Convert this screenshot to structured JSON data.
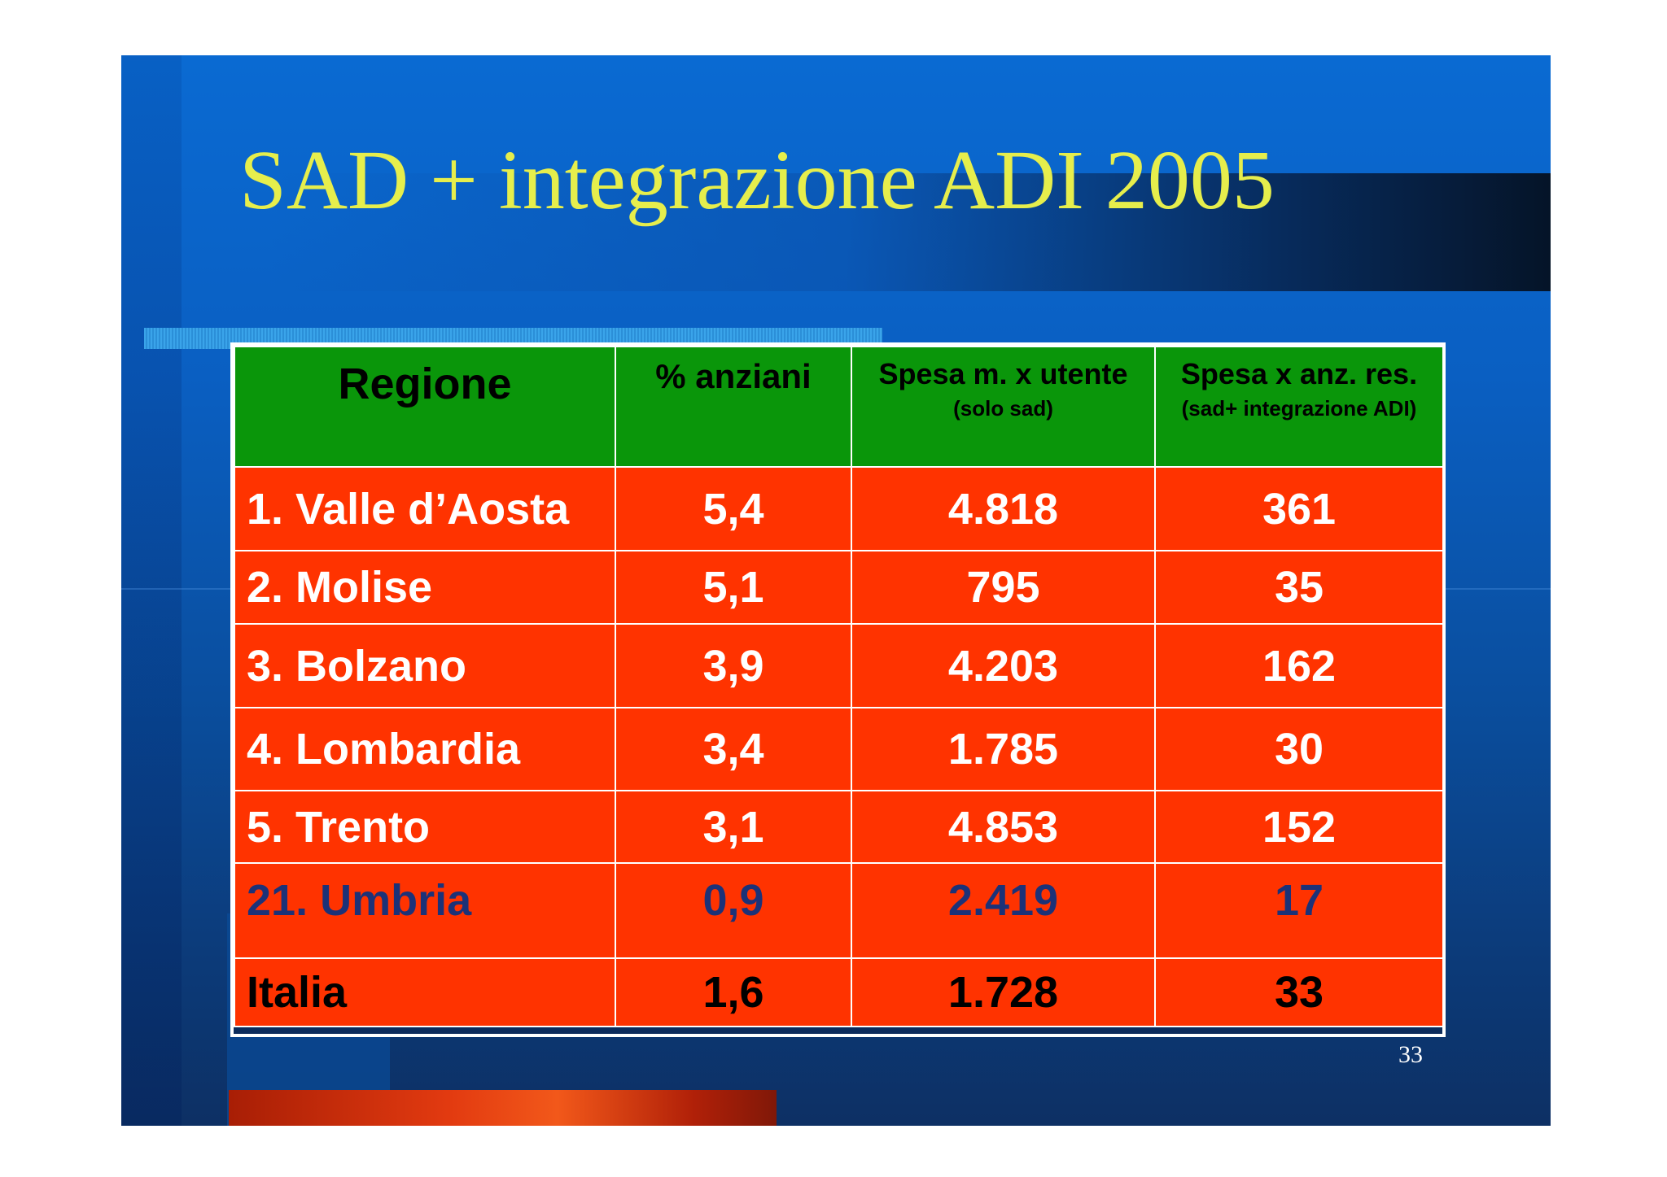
{
  "slide": {
    "title": "SAD + integrazione ADI 2005",
    "page_number": "33"
  },
  "table": {
    "headers": {
      "region": "Regione",
      "pct": "% anziani",
      "spesa_utente": "Spesa m. x utente",
      "spesa_utente_sub": "(solo sad)",
      "spesa_anz": "Spesa x anz. res.",
      "spesa_anz_sub": "(sad+ integrazione ADI)"
    },
    "rows": [
      {
        "region": "1. Valle d’Aosta",
        "pct": "5,4",
        "spesa_utente": "4.818",
        "spesa_anz": "361"
      },
      {
        "region": "2. Molise",
        "pct": "5,1",
        "spesa_utente": "795",
        "spesa_anz": "35"
      },
      {
        "region": "3. Bolzano",
        "pct": "3,9",
        "spesa_utente": "4.203",
        "spesa_anz": "162"
      },
      {
        "region": "4. Lombardia",
        "pct": "3,4",
        "spesa_utente": "1.785",
        "spesa_anz": "30"
      },
      {
        "region": "5. Trento",
        "pct": "3,1",
        "spesa_utente": "4.853",
        "spesa_anz": "152"
      },
      {
        "region": "21. Umbria",
        "pct": "0,9",
        "spesa_utente": "2.419",
        "spesa_anz": "17"
      },
      {
        "region": "Italia",
        "pct": "1,6",
        "spesa_utente": "1.728",
        "spesa_anz": "33"
      }
    ]
  },
  "colors": {
    "header_bg": "#0a960a",
    "cell_bg": "#ff3300",
    "title": "#e6ee4c",
    "highlight_row_text": "#1c3278",
    "total_row_text": "#000000"
  }
}
